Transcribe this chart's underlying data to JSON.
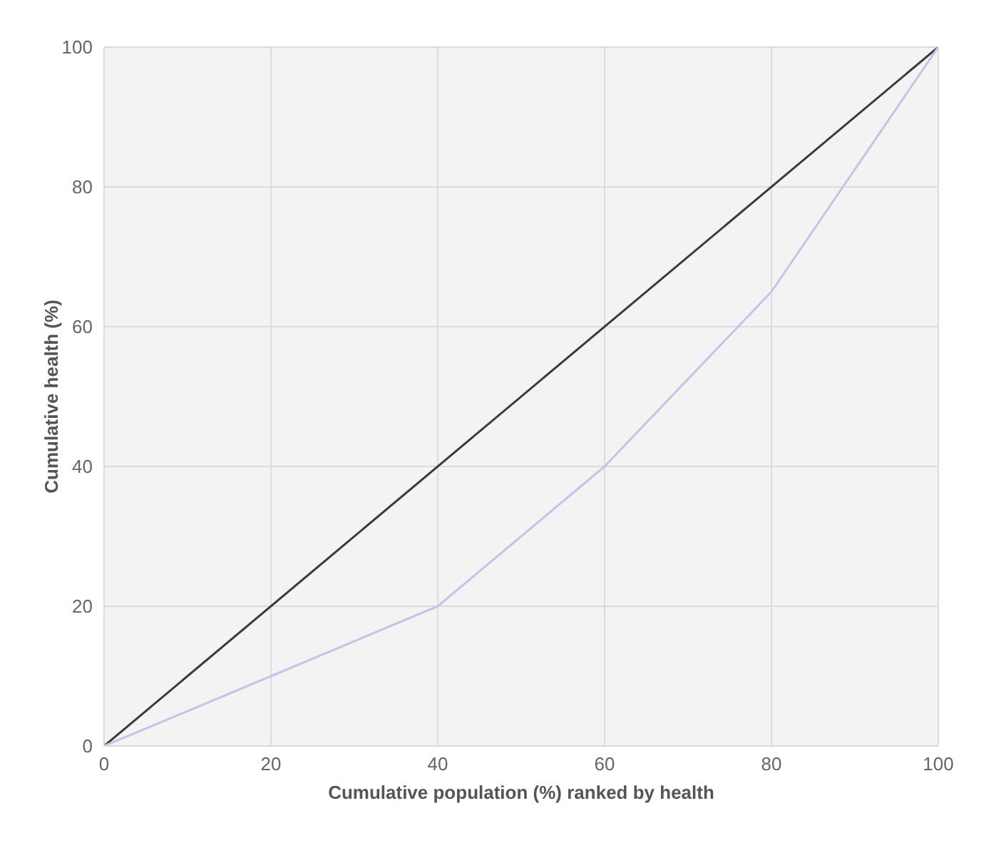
{
  "chart_data": {
    "type": "line",
    "xlabel": "Cumulative population (%) ranked by health",
    "ylabel": "Cumulative health (%)",
    "series": [
      {
        "color": "#3a3a3a",
        "x": [
          0,
          100
        ],
        "values": [
          0,
          100
        ]
      },
      {
        "color": "#c4c4e6",
        "x": [
          0,
          20,
          40,
          60,
          80,
          100
        ],
        "values": [
          0,
          10,
          20,
          40,
          65,
          100
        ]
      }
    ],
    "xlim": [
      0,
      100
    ],
    "xticks": [
      0,
      20,
      40,
      60,
      80,
      100
    ],
    "ylim": [
      0,
      100
    ],
    "yticks": [
      0,
      20,
      40,
      60,
      80,
      100
    ],
    "grid": true,
    "marker": "none",
    "line_style": "solid"
  }
}
